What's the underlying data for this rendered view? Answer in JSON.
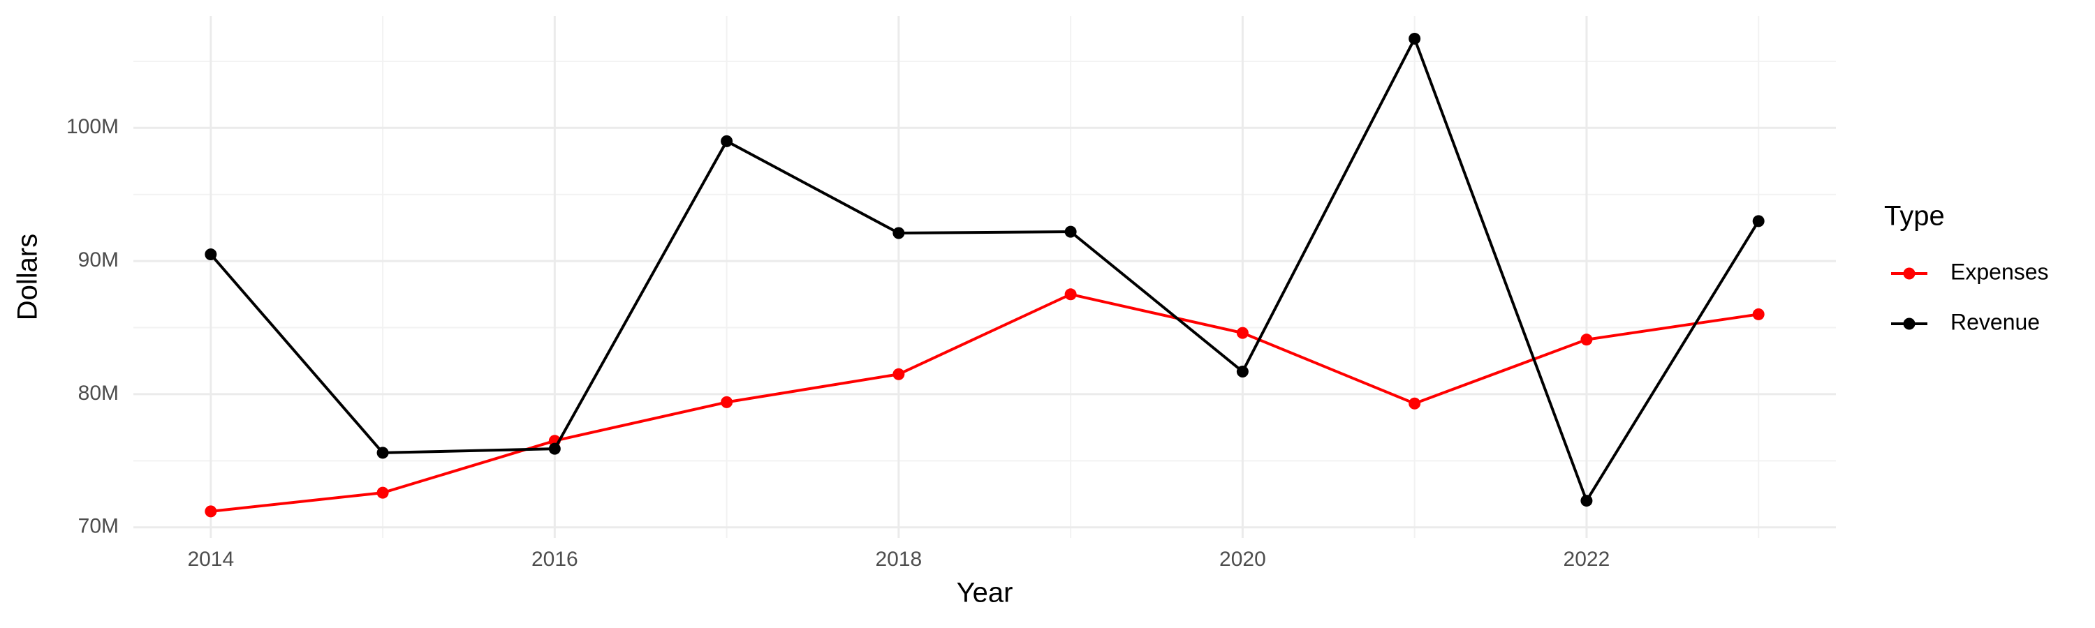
{
  "chart_data": {
    "type": "line",
    "x_label": "Year",
    "y_label": "Dollars",
    "legend_title": "Type",
    "legend_position": "right",
    "grid": true,
    "x": [
      2014,
      2015,
      2016,
      2017,
      2018,
      2019,
      2020,
      2021,
      2022,
      2023
    ],
    "series": [
      {
        "name": "Expenses",
        "color": "#ff0000",
        "values": [
          71200000,
          72600000,
          76500000,
          79400000,
          81500000,
          87500000,
          84600000,
          79300000,
          84100000,
          86000000
        ]
      },
      {
        "name": "Revenue",
        "color": "#000000",
        "values": [
          90500000,
          75600000,
          75900000,
          99000000,
          92100000,
          92200000,
          81700000,
          106700000,
          72000000,
          93000000
        ]
      }
    ],
    "xlim": [
      2013.55,
      2023.45
    ],
    "xticks": [
      2014,
      2016,
      2018,
      2020,
      2022
    ],
    "x_minor_ticks": [
      2015,
      2017,
      2019,
      2021,
      2023
    ],
    "ylim": [
      69200000,
      108400000
    ],
    "yticks": [
      {
        "value": 70000000,
        "label": "70M"
      },
      {
        "value": 80000000,
        "label": "80M"
      },
      {
        "value": 90000000,
        "label": "90M"
      },
      {
        "value": 100000000,
        "label": "100M"
      }
    ],
    "y_minor_ticks": [
      75000000,
      85000000,
      95000000,
      105000000
    ]
  }
}
